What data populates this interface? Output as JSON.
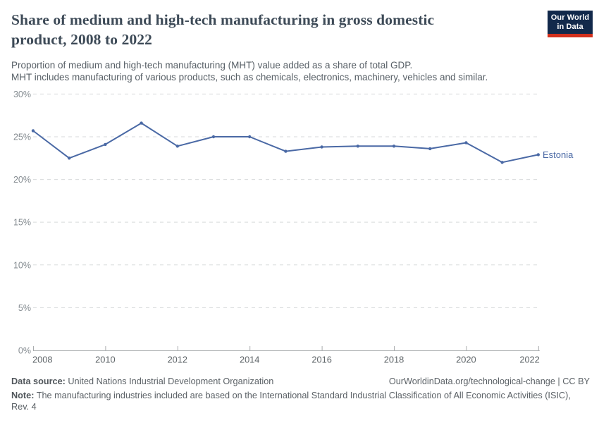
{
  "header": {
    "title_line1": "Share of medium and high-tech manufacturing in gross domestic",
    "title_line2": "product, 2008 to 2022",
    "subtitle_line1": "Proportion of medium and high-tech manufacturing (MHT) value added as a share of total GDP.",
    "subtitle_line2": "MHT includes manufacturing of various products, such as chemicals, electronics, machinery, vehicles and similar.",
    "logo_line1": "Our World",
    "logo_line2": "in Data",
    "logo_bg": "#12294b",
    "logo_bar": "#d2301c"
  },
  "chart_data": {
    "type": "line",
    "title": "Share of medium and high-tech manufacturing in gross domestic product, 2008 to 2022",
    "x": [
      2008,
      2009,
      2010,
      2011,
      2012,
      2013,
      2014,
      2015,
      2016,
      2017,
      2018,
      2019,
      2020,
      2021,
      2022
    ],
    "series": [
      {
        "name": "Estonia",
        "color": "#4a69a5",
        "values": [
          25.7,
          22.5,
          24.1,
          26.6,
          23.9,
          25.0,
          25.0,
          23.3,
          23.8,
          23.9,
          23.9,
          23.6,
          24.3,
          22.0,
          22.9
        ]
      }
    ],
    "unit": "%",
    "ylim": [
      0,
      30
    ],
    "yticks": [
      0,
      5,
      10,
      15,
      20,
      25,
      30
    ],
    "ytick_labels": [
      "0%",
      "5%",
      "10%",
      "15%",
      "20%",
      "25%",
      "30%"
    ],
    "xticks": [
      2008,
      2010,
      2012,
      2014,
      2016,
      2018,
      2020,
      2022
    ],
    "grid": "horizontal-dashed",
    "legend_position": "line-end-label"
  },
  "footer": {
    "data_source_label": "Data source:",
    "data_source": " United Nations Industrial Development Organization",
    "link": "OurWorldinData.org/technological-change | CC BY",
    "note_label": "Note:",
    "note_line1": " The manufacturing industries included are based on the International Standard Industrial Classification of All Economic Activities (ISIC),",
    "note_line2": "Rev. 4"
  },
  "colors": {
    "line": "#4a69a5",
    "gridline": "#d7dadb",
    "axis": "#a9acae",
    "ytick_text": "#848b90",
    "xtick_text": "#5e6468",
    "title_text": "#3d4a57",
    "subtitle_text": "#575f66",
    "footer_text": "#5b6166"
  }
}
